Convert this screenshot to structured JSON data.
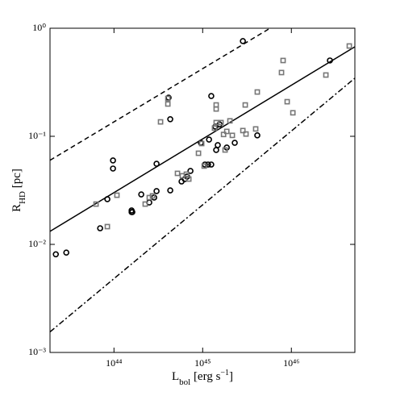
{
  "chart_data": {
    "type": "scatter",
    "x_label": [
      {
        "text": "L"
      },
      {
        "text": "bol",
        "shift": "sub"
      },
      {
        "text": " [erg s"
      },
      {
        "text": "−1",
        "shift": "sup"
      },
      {
        "text": "]"
      }
    ],
    "y_label": [
      {
        "text": "R"
      },
      {
        "text": "HD",
        "shift": "sub"
      },
      {
        "text": " [pc]"
      }
    ],
    "log_x": true,
    "log_y": true,
    "xlim": [
      1.9e+43,
      5.2e+46
    ],
    "ylim": [
      0.001,
      1
    ],
    "xticks": [
      {
        "value": 1e+44,
        "label": "10⁴⁴"
      },
      {
        "value": 1e+45,
        "label": "10⁴⁵"
      },
      {
        "value": 1e+46,
        "label": "10⁴⁶"
      }
    ],
    "yticks": [
      {
        "value": 0.001,
        "label": "10⁻³"
      },
      {
        "value": 0.01,
        "label": "10⁻²"
      },
      {
        "value": 0.1,
        "label": "10⁻¹"
      },
      {
        "value": 1,
        "label": "10⁰"
      }
    ],
    "series": [
      {
        "marker": "circle",
        "color": "#000000",
        "x": [
          2.21e+43,
          2.9e+43,
          6.98e+43,
          8.42e+43,
          9.75e+43,
          9.75e+43,
          1.58e+44,
          1.58e+44,
          1.61e+44,
          2.03e+44,
          2.5e+44,
          2.84e+44,
          3.02e+44,
          3.02e+44,
          4.13e+44,
          4.31e+44,
          4.31e+44,
          5.78e+44,
          6.28e+44,
          6.68e+44,
          7.28e+44,
          9.55e+44,
          1.06e+45,
          1.15e+45,
          1.25e+45,
          1.18e+45,
          1.25e+45,
          1.39e+45,
          1.42e+45,
          1.48e+45,
          1.55e+45,
          1.87e+45,
          2.3e+45,
          2.84e+45,
          4.13e+45,
          2.72e+46
        ],
        "y": [
          0.0081,
          0.0084,
          0.0141,
          0.0262,
          0.0598,
          0.0503,
          0.0199,
          0.0206,
          0.0199,
          0.029,
          0.0244,
          0.0271,
          0.0311,
          0.0557,
          0.228,
          0.144,
          0.0316,
          0.0382,
          0.0402,
          0.0424,
          0.0478,
          0.0871,
          0.0548,
          0.0548,
          0.0548,
          0.0933,
          0.236,
          0.123,
          0.0747,
          0.0828,
          0.129,
          0.0787,
          0.0871,
          0.76,
          0.102,
          0.503
        ]
      },
      {
        "marker": "square",
        "color": "#777777",
        "x": [
          6.28e+43,
          8.42e+43,
          1.08e+44,
          2.25e+44,
          2.5e+44,
          2.72e+44,
          3.35e+44,
          4.05e+44,
          4.05e+44,
          5.2e+44,
          5.9e+44,
          6.55e+44,
          6.98e+44,
          8.97e+44,
          9.75e+44,
          1.04e+45,
          1.36e+45,
          1.42e+45,
          1.42e+45,
          1.42e+45,
          1.61e+45,
          1.72e+45,
          1.79e+45,
          1.87e+45,
          2.03e+45,
          2.16e+45,
          2.84e+45,
          3.02e+45,
          3.08e+45,
          3.96e+45,
          4.13e+45,
          7.74e+45,
          8.07e+45,
          8.97e+45,
          1.04e+46,
          2.45e+46,
          4.5e+46
        ],
        "y": [
          0.0236,
          0.0146,
          0.0285,
          0.0236,
          0.0271,
          0.0281,
          0.136,
          0.199,
          0.224,
          0.0454,
          0.0431,
          0.0446,
          0.0402,
          0.0697,
          0.0857,
          0.053,
          0.119,
          0.134,
          0.179,
          0.195,
          0.134,
          0.104,
          0.0747,
          0.111,
          0.139,
          0.102,
          0.113,
          0.195,
          0.105,
          0.117,
          0.257,
          0.389,
          0.503,
          0.209,
          0.165,
          0.369,
          0.685
        ]
      }
    ],
    "lines": [
      {
        "style": "solid",
        "x": [
          1.9e+43,
          5.2e+46
        ],
        "y": [
          0.0132,
          0.673
        ]
      },
      {
        "style": "dashed",
        "x": [
          1.9e+43,
          5.75e+45
        ],
        "y": [
          0.06,
          1
        ]
      },
      {
        "style": "dashdot",
        "x": [
          1.9e+43,
          5.2e+46
        ],
        "y": [
          0.00155,
          0.345
        ]
      }
    ]
  }
}
